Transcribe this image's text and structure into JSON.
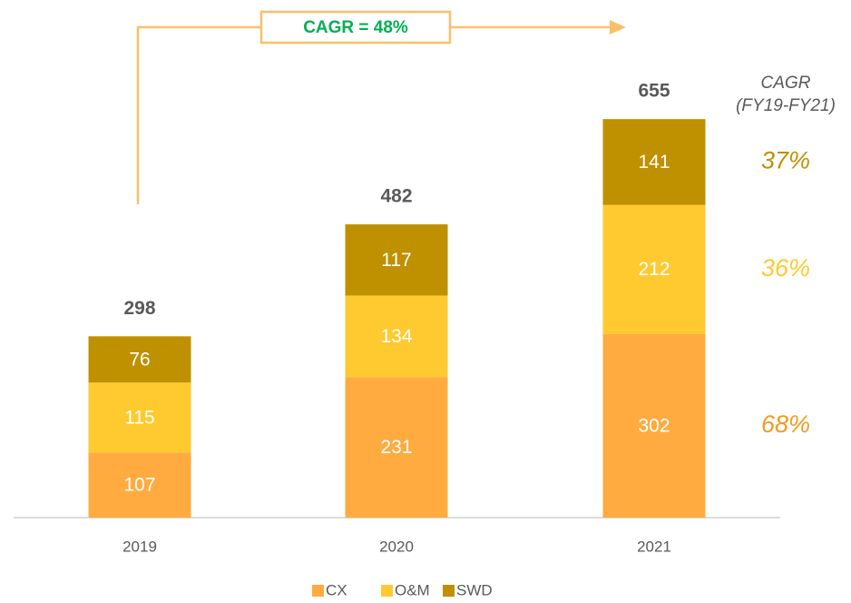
{
  "chart_data": {
    "type": "stacked-bar",
    "categories": [
      "2019",
      "2020",
      "2021"
    ],
    "series": [
      {
        "name": "CX",
        "color": "#FFAB40",
        "values": [
          107,
          231,
          302
        ],
        "cagr": "68%",
        "cagr_color": "#F29B1E"
      },
      {
        "name": "O&M",
        "color": "#FFCA30",
        "values": [
          115,
          134,
          212
        ],
        "cagr": "36%",
        "cagr_color": "#FFCA30"
      },
      {
        "name": "SWD",
        "color": "#BF9000",
        "values": [
          76,
          117,
          141
        ],
        "cagr": "37%",
        "cagr_color": "#BF9000"
      }
    ],
    "totals": [
      298,
      482,
      655
    ],
    "annotation": "CAGR = 48%",
    "cagr_title": "CAGR",
    "cagr_subtitle": "(FY19-FY21)"
  }
}
